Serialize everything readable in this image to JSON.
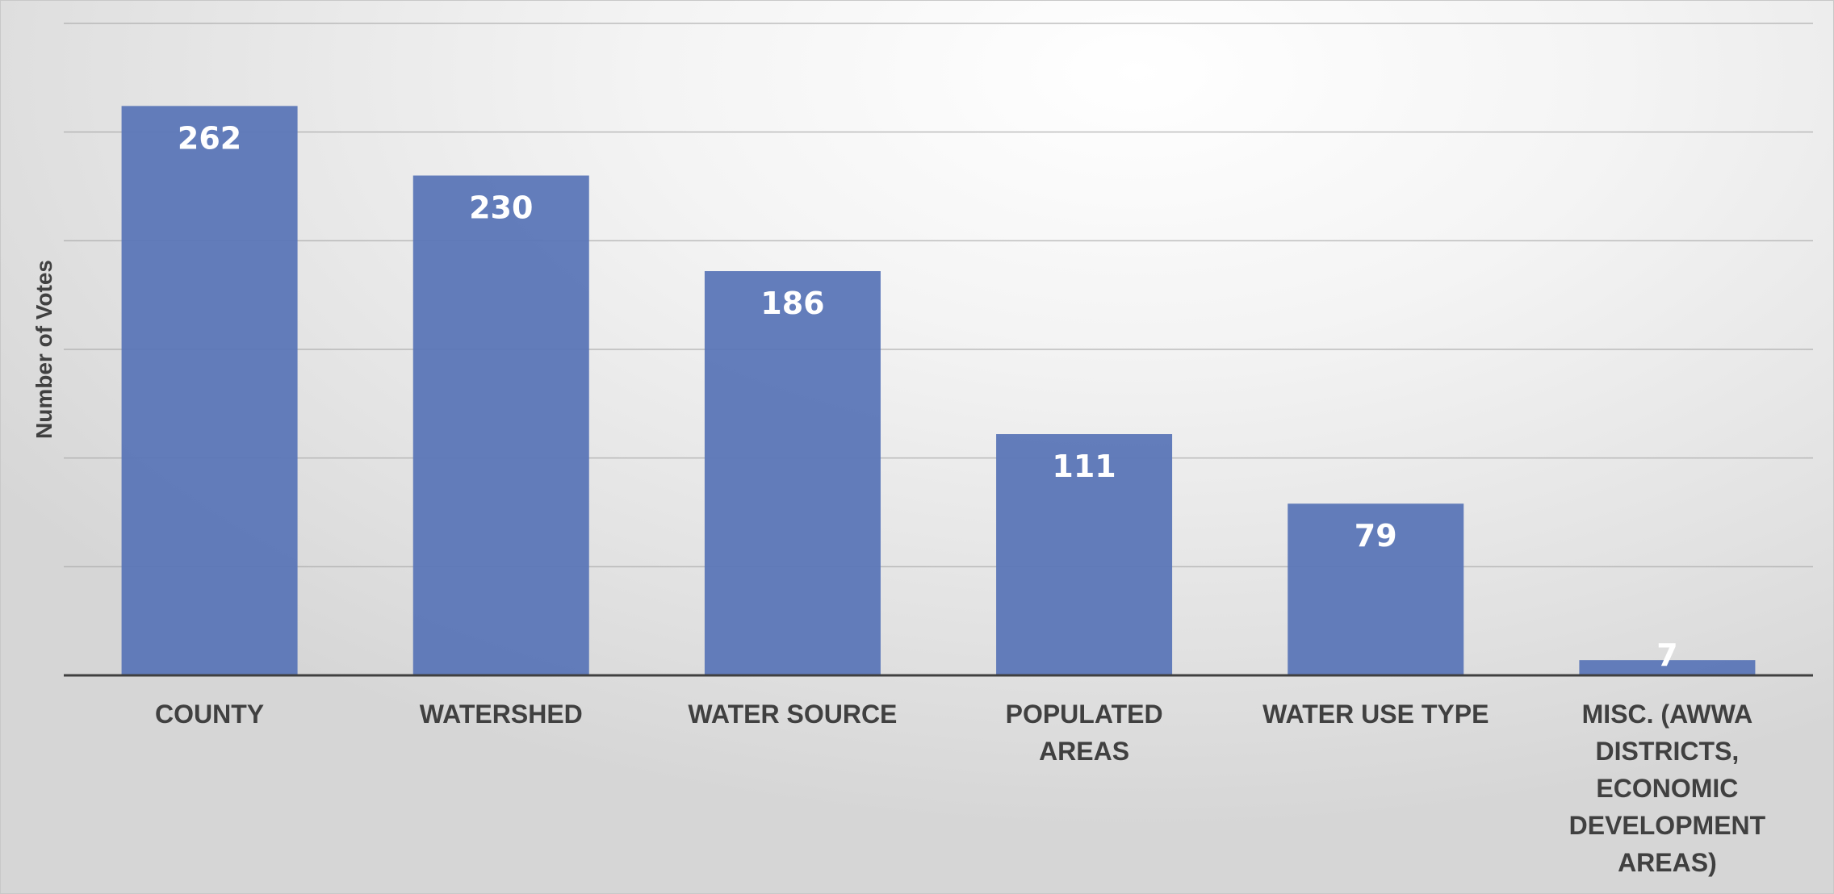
{
  "chart_data": {
    "type": "bar",
    "title": "",
    "xlabel": "",
    "ylabel": "Number of Votes",
    "categories": [
      "COUNTY",
      "WATERSHED",
      "WATER SOURCE",
      "POPULATED AREAS",
      "WATER USE TYPE",
      "MISC. (AWWA DISTRICTS, ECONOMIC DEVELOPMENT AREAS)"
    ],
    "values": [
      262,
      230,
      186,
      111,
      79,
      7
    ],
    "data_labels": [
      "262",
      "230",
      "186",
      "111",
      "79",
      "7"
    ],
    "ylim": [
      0,
      300
    ],
    "grid": true,
    "gridline_step": 50,
    "y_tick_labels_shown": false,
    "bar_color": "#5b76b7",
    "data_label_color": "#ffffff"
  }
}
